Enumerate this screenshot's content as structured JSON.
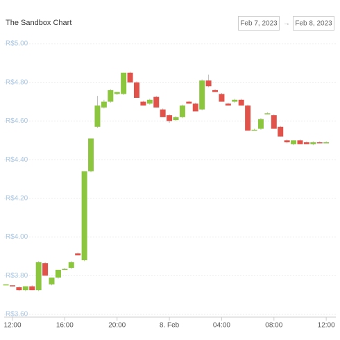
{
  "chart_data": {
    "type": "candlestick",
    "title": "The Sandbox Chart",
    "range": {
      "from": "Feb 7, 2023",
      "separator": "→",
      "to": "Feb 8, 2023"
    },
    "categories": [
      null,
      "12:00",
      null,
      null,
      null,
      null,
      null,
      null,
      null,
      "16:00",
      null,
      null,
      null,
      null,
      null,
      null,
      null,
      "20:00",
      null,
      null,
      null,
      null,
      null,
      null,
      null,
      "8. Feb",
      null,
      null,
      null,
      null,
      null,
      null,
      null,
      "04:00",
      null,
      null,
      null,
      null,
      null,
      null,
      null,
      "08:00",
      null,
      null,
      null,
      null,
      null,
      null,
      null,
      "12:00"
    ],
    "open": [
      3.755,
      3.75,
      3.74,
      3.725,
      3.745,
      3.725,
      3.865,
      3.755,
      3.79,
      3.835,
      3.84,
      3.915,
      3.88,
      4.34,
      4.57,
      4.67,
      4.7,
      4.74,
      4.74,
      4.85,
      4.8,
      4.7,
      4.69,
      4.725,
      4.66,
      4.63,
      4.605,
      4.62,
      4.7,
      4.69,
      4.66,
      4.81,
      4.76,
      4.74,
      4.69,
      4.7,
      4.71,
      4.68,
      4.555,
      4.56,
      4.64,
      4.63,
      4.57,
      4.5,
      4.48,
      4.5,
      4.49,
      4.48,
      4.49,
      4.49
    ],
    "high": [
      3.755,
      3.75,
      3.745,
      3.745,
      3.75,
      3.875,
      3.87,
      3.79,
      3.83,
      3.84,
      3.875,
      3.92,
      4.34,
      4.51,
      4.73,
      4.71,
      4.765,
      4.75,
      4.85,
      4.855,
      4.805,
      4.705,
      4.715,
      4.73,
      4.665,
      4.635,
      4.625,
      4.685,
      4.705,
      4.695,
      4.815,
      4.84,
      4.765,
      4.745,
      4.695,
      4.715,
      4.715,
      4.685,
      4.56,
      4.615,
      4.645,
      4.635,
      4.575,
      4.505,
      4.5,
      4.505,
      4.495,
      4.495,
      4.495,
      4.495
    ],
    "low": [
      3.755,
      3.745,
      3.72,
      3.72,
      3.725,
      3.72,
      3.8,
      3.75,
      3.785,
      3.83,
      3.835,
      3.905,
      3.875,
      4.335,
      4.565,
      4.665,
      4.695,
      4.735,
      4.735,
      4.8,
      4.72,
      4.68,
      4.685,
      4.67,
      4.62,
      4.59,
      4.6,
      4.615,
      4.69,
      4.65,
      4.655,
      4.775,
      4.75,
      4.7,
      4.68,
      4.695,
      4.68,
      4.55,
      4.55,
      4.555,
      4.635,
      4.56,
      4.52,
      4.485,
      4.475,
      4.48,
      4.48,
      4.475,
      4.485,
      4.485
    ],
    "close": [
      3.755,
      3.745,
      3.725,
      3.745,
      3.725,
      3.87,
      3.8,
      3.79,
      3.83,
      3.835,
      3.87,
      3.905,
      4.34,
      4.51,
      4.68,
      4.7,
      4.76,
      4.75,
      4.85,
      4.8,
      4.72,
      4.68,
      4.71,
      4.67,
      4.62,
      4.6,
      4.62,
      4.68,
      4.69,
      4.65,
      4.81,
      4.78,
      4.75,
      4.7,
      4.68,
      4.71,
      4.68,
      4.55,
      4.555,
      4.61,
      4.64,
      4.56,
      4.52,
      4.49,
      4.5,
      4.48,
      4.48,
      4.49,
      4.485,
      4.49
    ],
    "up_color": "#8cc63f",
    "down_color": "#e0524a",
    "ylim": [
      3.6,
      5.0
    ],
    "yticks": [
      {
        "value": 3.6,
        "label": "R$3.60"
      },
      {
        "value": 3.8,
        "label": "R$3.80"
      },
      {
        "value": 4.0,
        "label": "R$4.00"
      },
      {
        "value": 4.2,
        "label": "R$4.20"
      },
      {
        "value": 4.4,
        "label": "R$4.40"
      },
      {
        "value": 4.6,
        "label": "R$4.60"
      },
      {
        "value": 4.8,
        "label": "R$4.80"
      },
      {
        "value": 5.0,
        "label": "R$5.00"
      }
    ],
    "grid": true
  }
}
